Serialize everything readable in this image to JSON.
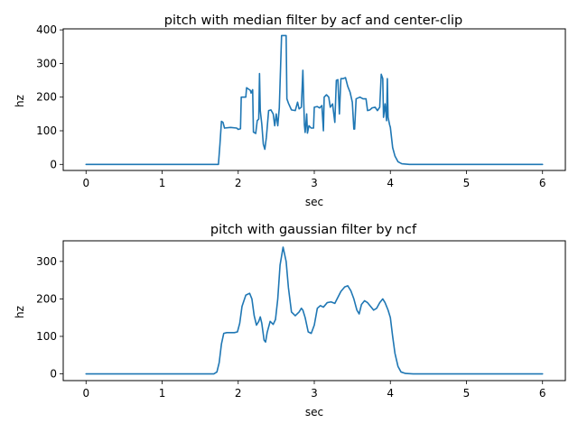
{
  "chart_data": [
    {
      "type": "line",
      "title": "pitch with median filter by acf and center-clip",
      "xlabel": "sec",
      "ylabel": "hz",
      "xlim": [
        -0.3,
        6.3
      ],
      "ylim": [
        -18,
        403
      ],
      "xticks": [
        0,
        1,
        2,
        3,
        4,
        5,
        6
      ],
      "yticks": [
        0,
        100,
        200,
        300,
        400
      ],
      "grid": false,
      "color": "#1f77b4",
      "series": [
        {
          "points": [
            [
              0,
              0
            ],
            [
              1.74,
              0
            ],
            [
              1.76,
              60
            ],
            [
              1.78,
              128
            ],
            [
              1.8,
              125
            ],
            [
              1.82,
              108
            ],
            [
              1.9,
              110
            ],
            [
              1.98,
              108
            ],
            [
              2.0,
              104
            ],
            [
              2.03,
              106
            ],
            [
              2.04,
              200
            ],
            [
              2.1,
              200
            ],
            [
              2.11,
              228
            ],
            [
              2.16,
              220
            ],
            [
              2.17,
              212
            ],
            [
              2.19,
              222
            ],
            [
              2.2,
              96
            ],
            [
              2.23,
              92
            ],
            [
              2.25,
              130
            ],
            [
              2.27,
              135
            ],
            [
              2.28,
              270
            ],
            [
              2.29,
              160
            ],
            [
              2.31,
              120
            ],
            [
              2.33,
              60
            ],
            [
              2.35,
              45
            ],
            [
              2.37,
              80
            ],
            [
              2.4,
              160
            ],
            [
              2.43,
              162
            ],
            [
              2.46,
              150
            ],
            [
              2.48,
              115
            ],
            [
              2.5,
              150
            ],
            [
              2.52,
              115
            ],
            [
              2.54,
              168
            ],
            [
              2.57,
              383
            ],
            [
              2.63,
              383
            ],
            [
              2.64,
              195
            ],
            [
              2.66,
              182
            ],
            [
              2.7,
              162
            ],
            [
              2.75,
              160
            ],
            [
              2.78,
              185
            ],
            [
              2.8,
              165
            ],
            [
              2.83,
              170
            ],
            [
              2.85,
              280
            ],
            [
              2.87,
              118
            ],
            [
              2.88,
              95
            ],
            [
              2.9,
              150
            ],
            [
              2.91,
              93
            ],
            [
              2.93,
              115
            ],
            [
              2.96,
              108
            ],
            [
              2.99,
              108
            ],
            [
              3.0,
              170
            ],
            [
              3.04,
              172
            ],
            [
              3.07,
              168
            ],
            [
              3.1,
              175
            ],
            [
              3.12,
              100
            ],
            [
              3.13,
              200
            ],
            [
              3.16,
              207
            ],
            [
              3.19,
              200
            ],
            [
              3.21,
              170
            ],
            [
              3.24,
              180
            ],
            [
              3.27,
              125
            ],
            [
              3.29,
              250
            ],
            [
              3.31,
              252
            ],
            [
              3.33,
              150
            ],
            [
              3.35,
              255
            ],
            [
              3.38,
              255
            ],
            [
              3.41,
              258
            ],
            [
              3.44,
              232
            ],
            [
              3.47,
              215
            ],
            [
              3.5,
              185
            ],
            [
              3.52,
              105
            ],
            [
              3.53,
              105
            ],
            [
              3.55,
              195
            ],
            [
              3.58,
              198
            ],
            [
              3.6,
              200
            ],
            [
              3.64,
              195
            ],
            [
              3.68,
              195
            ],
            [
              3.7,
              160
            ],
            [
              3.73,
              162
            ],
            [
              3.76,
              168
            ],
            [
              3.8,
              170
            ],
            [
              3.83,
              160
            ],
            [
              3.86,
              170
            ],
            [
              3.88,
              268
            ],
            [
              3.9,
              255
            ],
            [
              3.91,
              140
            ],
            [
              3.93,
              180
            ],
            [
              3.95,
              130
            ],
            [
              3.96,
              255
            ],
            [
              3.97,
              140
            ],
            [
              3.99,
              118
            ],
            [
              4.0,
              110
            ],
            [
              4.03,
              50
            ],
            [
              4.06,
              25
            ],
            [
              4.1,
              8
            ],
            [
              4.15,
              2
            ],
            [
              4.25,
              0
            ],
            [
              6.0,
              0
            ]
          ]
        }
      ]
    },
    {
      "type": "line",
      "title": "pitch with gaussian filter by ncf",
      "xlabel": "sec",
      "ylabel": "hz",
      "xlim": [
        -0.3,
        6.3
      ],
      "ylim": [
        -18,
        355
      ],
      "xticks": [
        0,
        1,
        2,
        3,
        4,
        5,
        6
      ],
      "yticks": [
        0,
        100,
        200,
        300
      ],
      "grid": false,
      "color": "#1f77b4",
      "series": [
        {
          "points": [
            [
              0,
              0
            ],
            [
              1.68,
              0
            ],
            [
              1.72,
              5
            ],
            [
              1.75,
              30
            ],
            [
              1.78,
              80
            ],
            [
              1.81,
              108
            ],
            [
              1.85,
              110
            ],
            [
              1.9,
              110
            ],
            [
              1.95,
              110
            ],
            [
              1.99,
              112
            ],
            [
              2.02,
              135
            ],
            [
              2.05,
              180
            ],
            [
              2.1,
              210
            ],
            [
              2.15,
              215
            ],
            [
              2.18,
              200
            ],
            [
              2.21,
              155
            ],
            [
              2.24,
              130
            ],
            [
              2.27,
              140
            ],
            [
              2.29,
              152
            ],
            [
              2.31,
              135
            ],
            [
              2.34,
              90
            ],
            [
              2.36,
              85
            ],
            [
              2.38,
              110
            ],
            [
              2.42,
              140
            ],
            [
              2.46,
              132
            ],
            [
              2.49,
              145
            ],
            [
              2.52,
              200
            ],
            [
              2.55,
              290
            ],
            [
              2.59,
              338
            ],
            [
              2.63,
              300
            ],
            [
              2.66,
              230
            ],
            [
              2.7,
              165
            ],
            [
              2.75,
              155
            ],
            [
              2.8,
              165
            ],
            [
              2.83,
              175
            ],
            [
              2.85,
              170
            ],
            [
              2.88,
              150
            ],
            [
              2.92,
              112
            ],
            [
              2.96,
              108
            ],
            [
              3.0,
              130
            ],
            [
              3.04,
              175
            ],
            [
              3.08,
              182
            ],
            [
              3.12,
              178
            ],
            [
              3.17,
              190
            ],
            [
              3.22,
              192
            ],
            [
              3.27,
              188
            ],
            [
              3.3,
              200
            ],
            [
              3.35,
              220
            ],
            [
              3.4,
              232
            ],
            [
              3.44,
              235
            ],
            [
              3.48,
              222
            ],
            [
              3.52,
              200
            ],
            [
              3.56,
              170
            ],
            [
              3.59,
              160
            ],
            [
              3.62,
              185
            ],
            [
              3.66,
              195
            ],
            [
              3.7,
              190
            ],
            [
              3.74,
              180
            ],
            [
              3.78,
              170
            ],
            [
              3.82,
              175
            ],
            [
              3.86,
              190
            ],
            [
              3.9,
              200
            ],
            [
              3.93,
              190
            ],
            [
              3.97,
              170
            ],
            [
              4.0,
              150
            ],
            [
              4.03,
              100
            ],
            [
              4.06,
              55
            ],
            [
              4.1,
              20
            ],
            [
              4.14,
              5
            ],
            [
              4.2,
              1
            ],
            [
              4.3,
              0
            ],
            [
              6.0,
              0
            ]
          ]
        }
      ]
    }
  ]
}
